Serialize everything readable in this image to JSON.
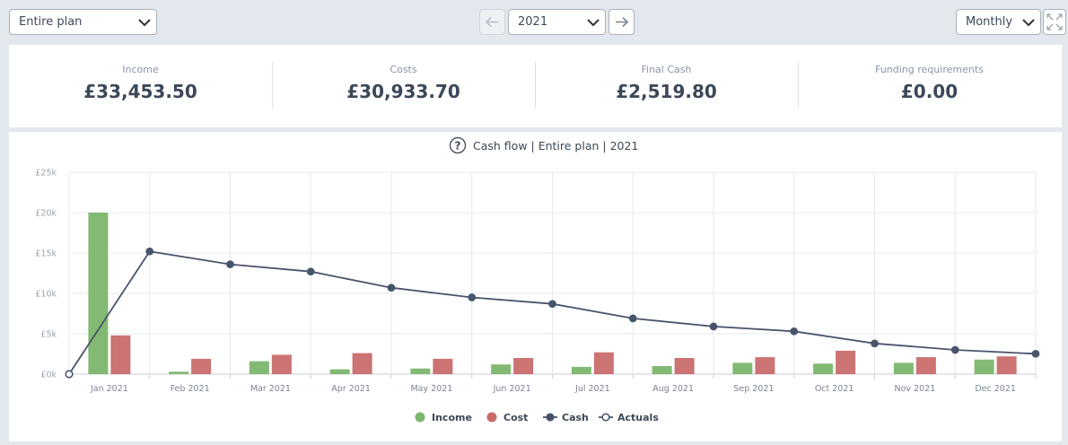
{
  "toolbar": {
    "plan": "Entire plan",
    "year": "2021",
    "view": "Monthly"
  },
  "summary": [
    {
      "label": "Income",
      "value": "£33,453.50"
    },
    {
      "label": "Costs",
      "value": "£30,933.70"
    },
    {
      "label": "Final Cash",
      "value": "£2,519.80"
    },
    {
      "label": "Funding requirements",
      "value": "£0.00"
    }
  ],
  "chart_data": {
    "type": "bar",
    "help_icon": "?",
    "title": "Cash flow | Entire plan | 2021",
    "categories": [
      "Jan 2021",
      "Feb 2021",
      "Mar 2021",
      "Apr 2021",
      "May 2021",
      "Jun 2021",
      "Jul 2021",
      "Aug 2021",
      "Sep 2021",
      "Oct 2021",
      "Nov 2021",
      "Dec 2021"
    ],
    "ylim": [
      0,
      25000
    ],
    "yticks": [
      {
        "value": 0,
        "label": "£0k"
      },
      {
        "value": 5000,
        "label": "£5k"
      },
      {
        "value": 10000,
        "label": "£10k"
      },
      {
        "value": 15000,
        "label": "£15k"
      },
      {
        "value": 20000,
        "label": "£20k"
      },
      {
        "value": 25000,
        "label": "£25k"
      }
    ],
    "grid": true,
    "series": [
      {
        "name": "Income",
        "type": "bar",
        "color": "#7cb66c",
        "values": [
          20000,
          300,
          1600,
          600,
          700,
          1200,
          900,
          1000,
          1400,
          1300,
          1400,
          1800
        ]
      },
      {
        "name": "Cost",
        "type": "bar",
        "color": "#c96b6b",
        "values": [
          4800,
          1900,
          2400,
          2600,
          1900,
          2000,
          2700,
          2000,
          2100,
          2900,
          2100,
          2200
        ]
      },
      {
        "name": "Cash",
        "type": "line",
        "color": "#48546b",
        "x": [
          0,
          1,
          2,
          3,
          4,
          5,
          6,
          7,
          8,
          9,
          10,
          11,
          12
        ],
        "values": [
          0,
          15200,
          13600,
          12700,
          10700,
          9500,
          8700,
          6900,
          5900,
          5300,
          3800,
          3000,
          2520
        ]
      },
      {
        "name": "Actuals",
        "type": "line",
        "marker": "hollow",
        "color": "#48546b",
        "x": [
          0
        ],
        "values": [
          0
        ]
      }
    ]
  }
}
